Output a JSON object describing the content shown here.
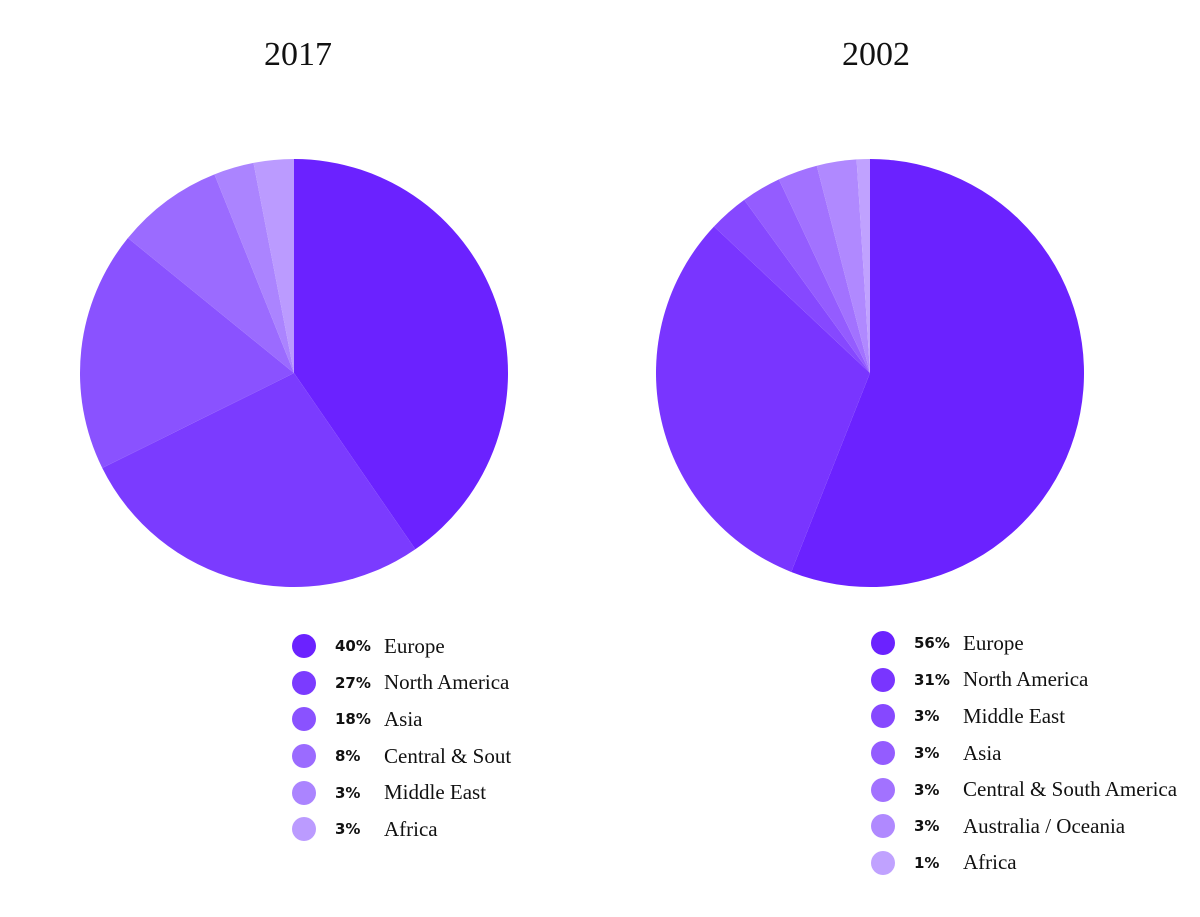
{
  "chart_data": [
    {
      "type": "pie",
      "title": "2017",
      "series": [
        {
          "name": "Europe",
          "value": 40,
          "label": "40%",
          "color": "#6b22ff"
        },
        {
          "name": "North America",
          "value": 27,
          "label": "27%",
          "color": "#7b3bff"
        },
        {
          "name": "Asia",
          "value": 18,
          "label": "18%",
          "color": "#8a52ff"
        },
        {
          "name": "Central & Sout",
          "value": 8,
          "label": "8%",
          "color": "#9b6bff"
        },
        {
          "name": "Middle East",
          "value": 3,
          "label": "3%",
          "color": "#ab84ff"
        },
        {
          "name": "Africa",
          "value": 3,
          "label": "3%",
          "color": "#bb9bff"
        }
      ],
      "legend_position": "bottom"
    },
    {
      "type": "pie",
      "title": "2002",
      "series": [
        {
          "name": "Europe",
          "value": 56,
          "label": "56%",
          "color": "#6b22ff"
        },
        {
          "name": "North America",
          "value": 31,
          "label": "31%",
          "color": "#7935ff"
        },
        {
          "name": "Middle East",
          "value": 3,
          "label": "3%",
          "color": "#8648ff"
        },
        {
          "name": "Asia",
          "value": 3,
          "label": "3%",
          "color": "#945cff"
        },
        {
          "name": "Central & South America",
          "value": 3,
          "label": "3%",
          "color": "#a272ff"
        },
        {
          "name": "Australia / Oceania",
          "value": 3,
          "label": "3%",
          "color": "#b089ff"
        },
        {
          "name": "Africa",
          "value": 1,
          "label": "1%",
          "color": "#c0a2ff"
        }
      ],
      "legend_position": "bottom"
    }
  ]
}
